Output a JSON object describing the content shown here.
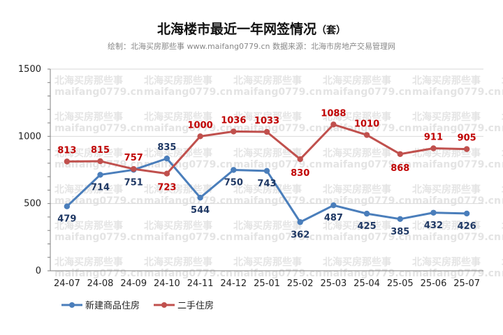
{
  "title": "北海楼市最近一年网签情况",
  "title_suffix": "（套）",
  "subtitle": "绘制：北海买房那些事 www.maifang0779.cn 数据来源：北海市房地产交易管理网",
  "watermark": {
    "line1": "北海买房那些事",
    "line2": "maifang0779.cn"
  },
  "colors": {
    "series1": "#4a7ebb",
    "series2": "#c0504d",
    "label1": "#1f3864",
    "label2": "#c00000",
    "grid": "#d9d9d9",
    "axis": "#7f7f7f"
  },
  "chart_data": {
    "type": "line",
    "categories": [
      "24-07",
      "24-08",
      "24-09",
      "24-10",
      "24-11",
      "24-12",
      "25-01",
      "25-02",
      "25-03",
      "25-04",
      "25-05",
      "25-06",
      "25-07"
    ],
    "series": [
      {
        "name": "新建商品住房",
        "values": [
          479,
          714,
          751,
          835,
          544,
          750,
          743,
          362,
          487,
          425,
          385,
          432,
          426
        ]
      },
      {
        "name": "二手住房",
        "values": [
          813,
          815,
          757,
          723,
          1000,
          1036,
          1033,
          830,
          1088,
          1010,
          868,
          911,
          905
        ]
      }
    ],
    "ylim": [
      0,
      1500
    ],
    "yticks": [
      0,
      500,
      1000,
      1500
    ],
    "grid": true,
    "legend_position": "bottom-left"
  }
}
